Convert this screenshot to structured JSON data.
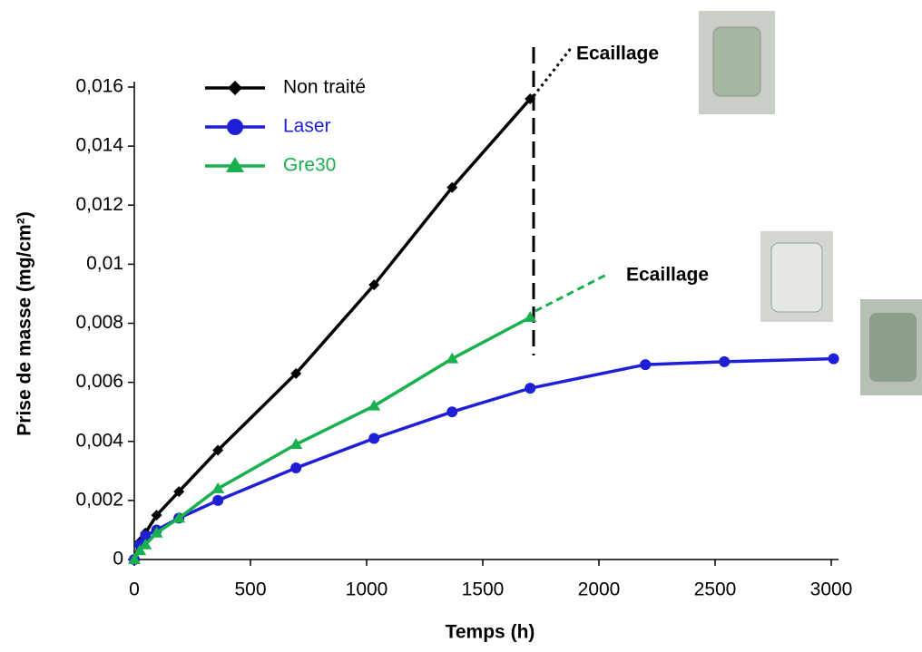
{
  "chart_data": {
    "type": "line",
    "x_label": "Temps (h)",
    "y_label": "Prise de masse (mg/cm²)",
    "xlim": [
      0,
      3000
    ],
    "ylim": [
      0,
      0.016
    ],
    "xticks": [
      0,
      500,
      1000,
      1500,
      2000,
      2500,
      3000
    ],
    "yticks": [
      0,
      {
        "value": 0.002,
        "label": "0,002"
      },
      {
        "value": 0.004,
        "label": "0,004"
      },
      {
        "value": 0.006,
        "label": "0,006"
      },
      {
        "value": 0.008,
        "label": "0,008"
      },
      {
        "value": 0.01,
        "label": "0,01"
      },
      {
        "value": 0.012,
        "label": "0,012"
      },
      {
        "value": 0.014,
        "label": "0,014"
      },
      {
        "value": 0.016,
        "label": "0,016"
      }
    ],
    "series": [
      {
        "name": "Non traité",
        "color": "#000000",
        "marker": "diamond",
        "x": [
          0,
          24,
          48,
          96,
          192,
          360,
          696,
          1032,
          1368,
          1704
        ],
        "values": [
          0,
          0.0006,
          0.0009,
          0.0015,
          0.0023,
          0.0037,
          0.0063,
          0.0093,
          0.0126,
          0.0156
        ]
      },
      {
        "name": "Laser",
        "color": "#1f1fd6",
        "marker": "circle",
        "x": [
          0,
          24,
          48,
          96,
          192,
          360,
          696,
          1032,
          1368,
          1704,
          2200,
          2540,
          3010
        ],
        "values": [
          0,
          0.0005,
          0.0008,
          0.001,
          0.0014,
          0.002,
          0.0031,
          0.0041,
          0.005,
          0.0058,
          0.0066,
          0.0067,
          0.0068
        ]
      },
      {
        "name": "Gre30",
        "color": "#19b04f",
        "marker": "triangle",
        "x": [
          0,
          24,
          48,
          96,
          192,
          360,
          696,
          1032,
          1368,
          1704
        ],
        "values": [
          0,
          0.0003,
          0.0005,
          0.0009,
          0.0014,
          0.0024,
          0.0039,
          0.0052,
          0.0068,
          0.0082
        ]
      }
    ],
    "annotations": [
      "Ecaillage",
      "Ecaillage"
    ]
  }
}
